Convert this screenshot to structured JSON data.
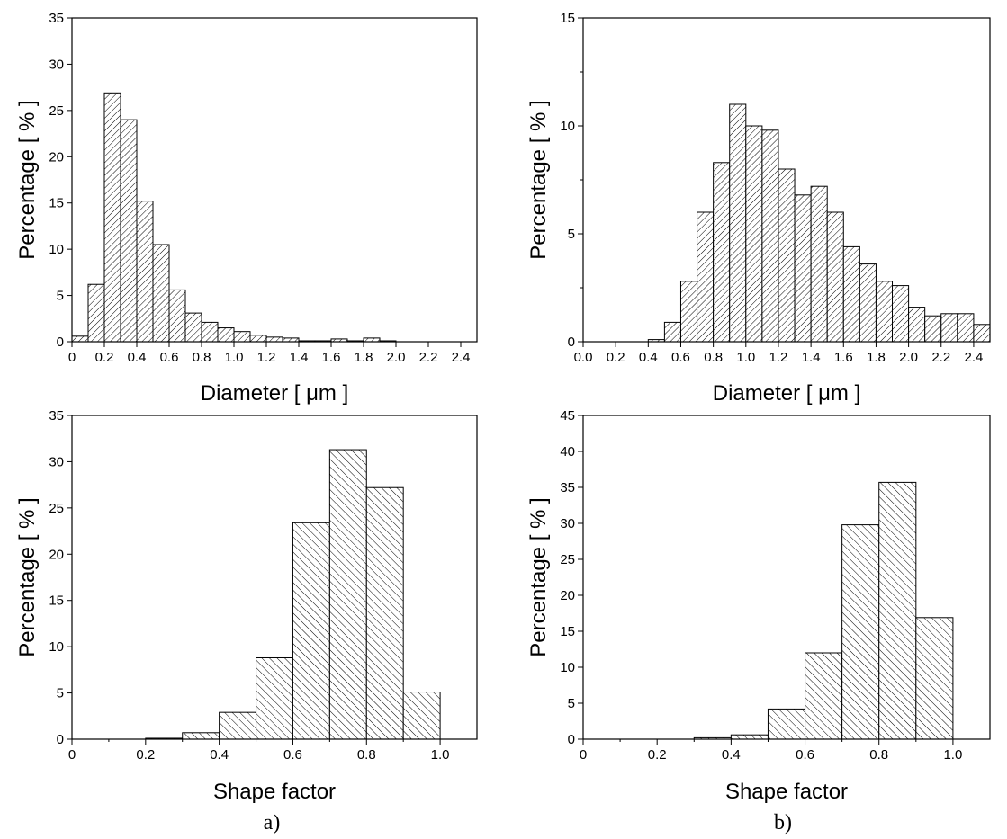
{
  "captions": [
    "a)",
    "b)"
  ],
  "chart_data": [
    {
      "type": "bar",
      "panel": "a",
      "xlabel": "Diameter [ μm ]",
      "ylabel": "Percentage [ % ]",
      "xlim": [
        0,
        2.5
      ],
      "ylim": [
        0,
        35
      ],
      "xticks": [
        "0",
        "0.2",
        "0.4",
        "0.6",
        "0.8",
        "1.0",
        "1.2",
        "1.4",
        "1.6",
        "1.8",
        "2.0",
        "2.2",
        "2.4"
      ],
      "yticks": [
        "0",
        "5",
        "10",
        "15",
        "20",
        "25",
        "30",
        "35"
      ],
      "hatch": "forward",
      "bin_width": 0.1,
      "bin_starts": [
        0,
        0.1,
        0.2,
        0.3,
        0.4,
        0.5,
        0.6,
        0.7,
        0.8,
        0.9,
        1.0,
        1.1,
        1.2,
        1.3,
        1.4,
        1.5,
        1.6,
        1.7,
        1.8,
        1.9
      ],
      "values": [
        0.6,
        6.2,
        26.9,
        24.0,
        15.2,
        10.5,
        5.6,
        3.1,
        2.1,
        1.5,
        1.1,
        0.7,
        0.5,
        0.4,
        0.1,
        0.1,
        0.3,
        0.1,
        0.4,
        0.1
      ]
    },
    {
      "type": "bar",
      "panel": "b",
      "xlabel": "Diameter [ μm ]",
      "ylabel": "Percentage [ % ]",
      "xlim": [
        0,
        2.5
      ],
      "ylim": [
        0,
        15
      ],
      "xticks": [
        "0.0",
        "0.2",
        "0.4",
        "0.6",
        "0.8",
        "1.0",
        "1.2",
        "1.4",
        "1.6",
        "1.8",
        "2.0",
        "2.2",
        "2.4"
      ],
      "yticks": [
        "0",
        "5",
        "10",
        "15"
      ],
      "hatch": "forward",
      "bin_width": 0.1,
      "bin_starts": [
        0.4,
        0.5,
        0.6,
        0.7,
        0.8,
        0.9,
        1.0,
        1.1,
        1.2,
        1.3,
        1.4,
        1.5,
        1.6,
        1.7,
        1.8,
        1.9,
        2.0,
        2.1,
        2.2,
        2.3,
        2.4
      ],
      "values": [
        0.1,
        0.9,
        2.8,
        6.0,
        8.3,
        11.0,
        10.0,
        9.8,
        8.0,
        6.8,
        7.2,
        6.0,
        4.4,
        3.6,
        2.8,
        2.6,
        1.6,
        1.2,
        1.3,
        1.3,
        0.8
      ]
    },
    {
      "type": "bar",
      "panel": "a",
      "xlabel": "Shape factor",
      "ylabel": "Percentage [ % ]",
      "xlim": [
        0,
        1.1
      ],
      "ylim": [
        0,
        35
      ],
      "xticks": [
        "0",
        "0.2",
        "0.4",
        "0.6",
        "0.8",
        "1.0"
      ],
      "yticks": [
        "0",
        "5",
        "10",
        "15",
        "20",
        "25",
        "30",
        "35"
      ],
      "hatch": "backward",
      "bin_width": 0.1,
      "bin_starts": [
        0.2,
        0.3,
        0.4,
        0.5,
        0.6,
        0.7,
        0.8,
        0.9
      ],
      "values": [
        0.1,
        0.7,
        2.9,
        8.8,
        23.4,
        31.3,
        27.2,
        5.1
      ]
    },
    {
      "type": "bar",
      "panel": "b",
      "xlabel": "Shape factor",
      "ylabel": "Percentage [ % ]",
      "xlim": [
        0,
        1.1
      ],
      "ylim": [
        0,
        45
      ],
      "xticks": [
        "0",
        "0.2",
        "0.4",
        "0.6",
        "0.8",
        "1.0"
      ],
      "yticks": [
        "0",
        "5",
        "10",
        "15",
        "20",
        "25",
        "30",
        "35",
        "40",
        "45"
      ],
      "hatch": "backward",
      "bin_width": 0.1,
      "bin_starts": [
        0.3,
        0.4,
        0.5,
        0.6,
        0.7,
        0.8,
        0.9
      ],
      "values": [
        0.2,
        0.6,
        4.2,
        12.0,
        29.8,
        35.7,
        16.9
      ]
    }
  ]
}
